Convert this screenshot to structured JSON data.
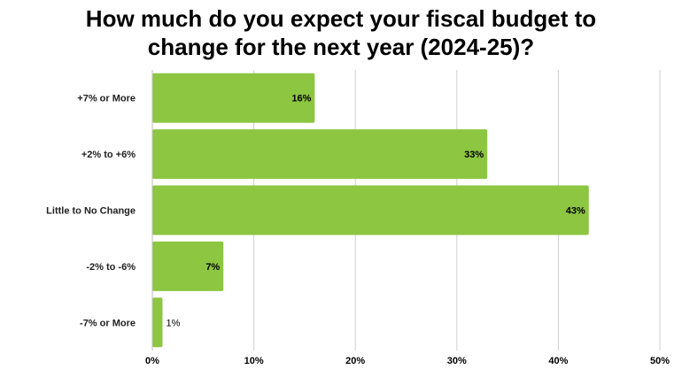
{
  "chart_data": {
    "type": "bar",
    "orientation": "horizontal",
    "title_lines": [
      "How much do you expect your fiscal budget to",
      "change for the next year (2024-25)?"
    ],
    "categories": [
      "+7% or More",
      "+2% to +6%",
      "Little to No Change",
      "-2% to -6%",
      "-7% or More"
    ],
    "values": [
      16,
      33,
      43,
      7,
      1
    ],
    "value_labels": [
      "16%",
      "33%",
      "43%",
      "7%",
      "1%"
    ],
    "xlim": [
      0,
      50
    ],
    "x_ticks": [
      0,
      10,
      20,
      30,
      40,
      50
    ],
    "x_tick_labels": [
      "0%",
      "10%",
      "20%",
      "30%",
      "40%",
      "50%"
    ],
    "grid": true,
    "legend": "none",
    "bar_color": "#8dc641",
    "grid_color": "#d0d0d0"
  }
}
